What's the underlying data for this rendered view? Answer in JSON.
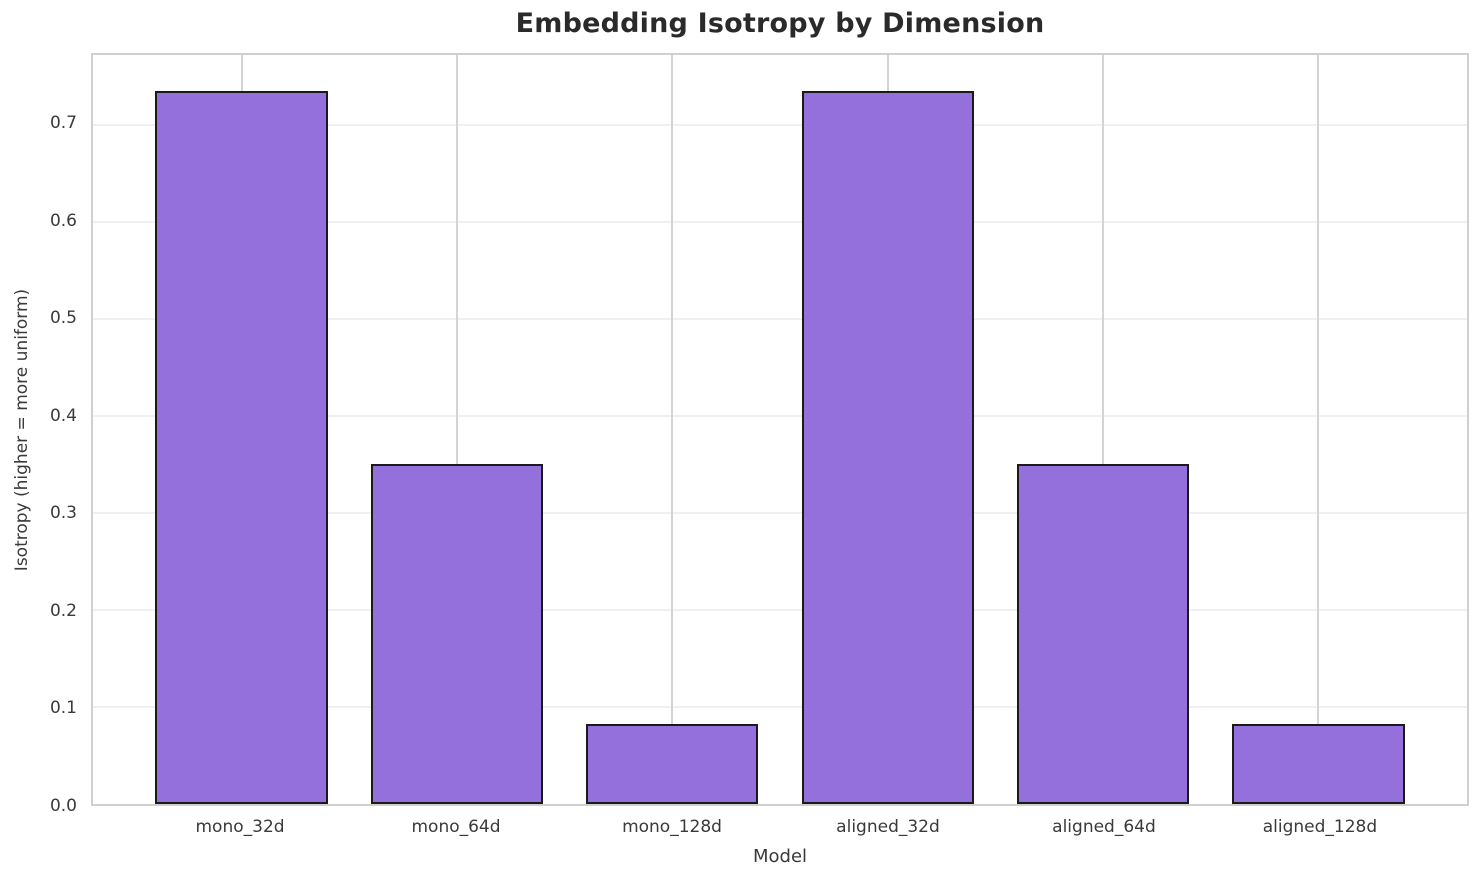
{
  "chart_data": {
    "type": "bar",
    "title": "Embedding Isotropy by Dimension",
    "xlabel": "Model",
    "ylabel": "Isotropy (higher = more uniform)",
    "categories": [
      "mono_32d",
      "mono_64d",
      "mono_128d",
      "aligned_32d",
      "aligned_64d",
      "aligned_128d"
    ],
    "values": [
      0.735,
      0.35,
      0.082,
      0.735,
      0.35,
      0.082
    ],
    "ylim": [
      0,
      0.772
    ],
    "yticks": [
      0.0,
      0.1,
      0.2,
      0.3,
      0.4,
      0.5,
      0.6,
      0.7
    ],
    "grid": "on",
    "legend": "none",
    "colors": {
      "bar_fill": "#9370db",
      "bar_edge": "#1a1a1a",
      "grid_vertical": "#d4d4d4",
      "grid_horizontal": "#f0f0f0",
      "spine": "#cfcfcf",
      "title_text": "#2a2a2a",
      "tick_text": "#3a3a3a"
    }
  }
}
